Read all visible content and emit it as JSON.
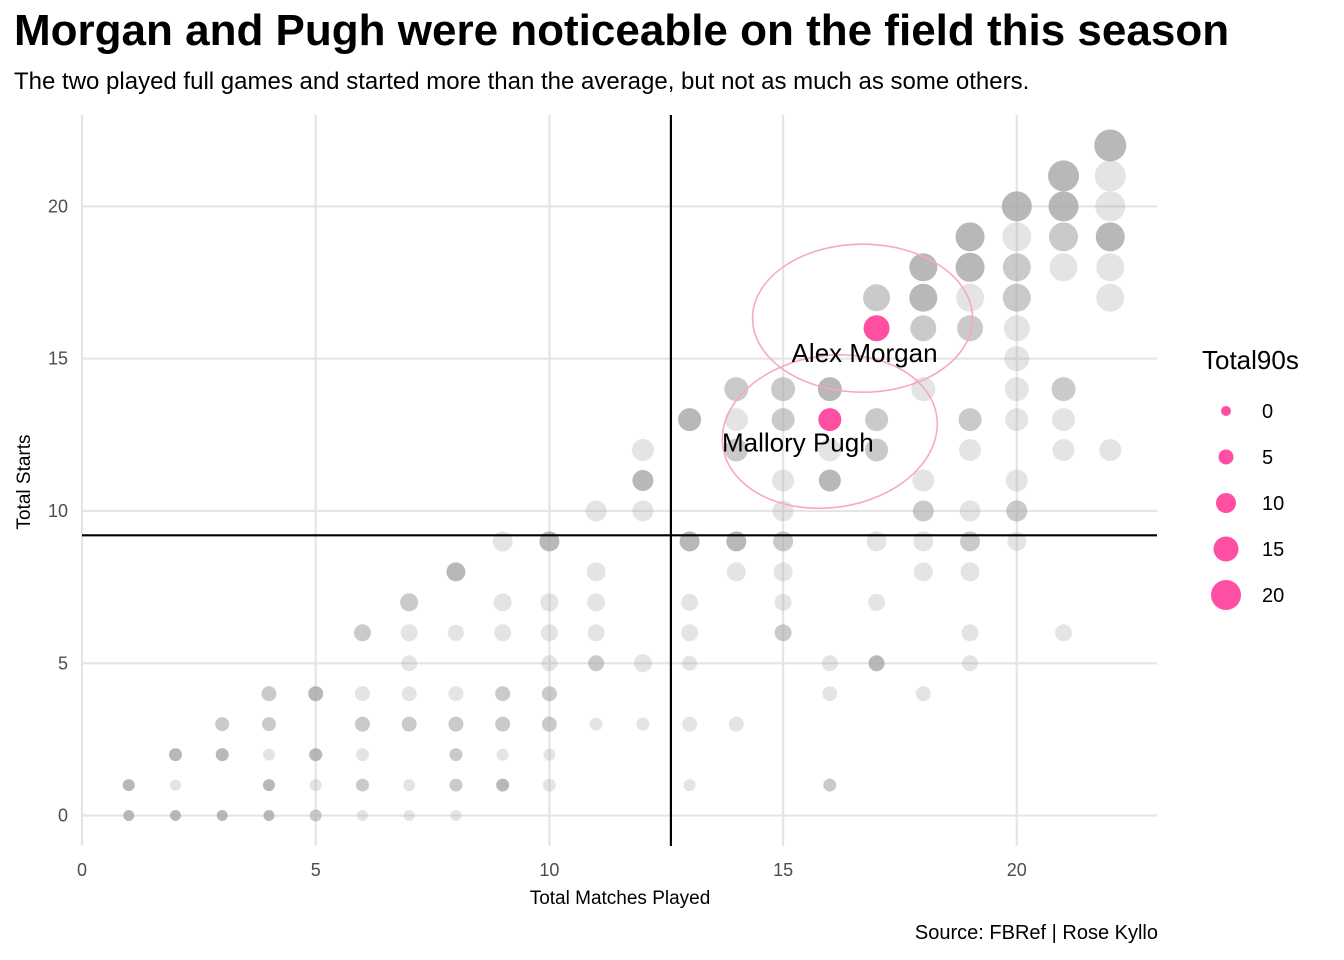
{
  "title": "Morgan and Pugh were noticeable on the field this season",
  "subtitle": "The two played full games and started more than the average, but not as much as some others.",
  "caption": "Source: FBRef | Rose Kyllo",
  "colors": {
    "highlight": "#ff4fa3",
    "points": "#a6a6a6",
    "ellipse": "#f7a8c4",
    "grid": "#e5e5e5",
    "mean_line": "#000000"
  },
  "chart_data": {
    "type": "scatter",
    "xlabel": "Total Matches Played",
    "ylabel": "Total Starts",
    "xlim": [
      0,
      23
    ],
    "ylim": [
      -1,
      23
    ],
    "x_ticks": [
      0,
      5,
      10,
      15,
      20
    ],
    "y_ticks": [
      0,
      5,
      10,
      15,
      20
    ],
    "grid": true,
    "mean_lines": {
      "x": 12.6,
      "y": 9.2
    },
    "legend": {
      "title": "Total90s",
      "placement": "right",
      "entries": [
        0,
        5,
        10,
        15,
        20
      ]
    },
    "points": [
      {
        "x": 1,
        "y": 0,
        "s": 1,
        "a": 0.8
      },
      {
        "x": 1,
        "y": 1,
        "s": 2,
        "a": 0.8
      },
      {
        "x": 2,
        "y": 0,
        "s": 1,
        "a": 0.8
      },
      {
        "x": 2,
        "y": 1,
        "s": 1,
        "a": 0.3
      },
      {
        "x": 2,
        "y": 2,
        "s": 3,
        "a": 0.8
      },
      {
        "x": 3,
        "y": 0,
        "s": 1,
        "a": 0.8
      },
      {
        "x": 3,
        "y": 2,
        "s": 3,
        "a": 0.8
      },
      {
        "x": 3,
        "y": 3,
        "s": 4,
        "a": 0.6
      },
      {
        "x": 4,
        "y": 0,
        "s": 1,
        "a": 0.8
      },
      {
        "x": 4,
        "y": 1,
        "s": 2,
        "a": 0.8
      },
      {
        "x": 4,
        "y": 2,
        "s": 2,
        "a": 0.3
      },
      {
        "x": 4,
        "y": 3,
        "s": 4,
        "a": 0.6
      },
      {
        "x": 4,
        "y": 4,
        "s": 5,
        "a": 0.6
      },
      {
        "x": 5,
        "y": 0,
        "s": 2,
        "a": 0.6
      },
      {
        "x": 5,
        "y": 1,
        "s": 2,
        "a": 0.3
      },
      {
        "x": 5,
        "y": 2,
        "s": 3,
        "a": 0.8
      },
      {
        "x": 5,
        "y": 4,
        "s": 5,
        "a": 0.8
      },
      {
        "x": 6,
        "y": 0,
        "s": 1,
        "a": 0.3
      },
      {
        "x": 6,
        "y": 1,
        "s": 3,
        "a": 0.6
      },
      {
        "x": 6,
        "y": 2,
        "s": 3,
        "a": 0.3
      },
      {
        "x": 6,
        "y": 3,
        "s": 5,
        "a": 0.6
      },
      {
        "x": 6,
        "y": 4,
        "s": 5,
        "a": 0.3
      },
      {
        "x": 6,
        "y": 6,
        "s": 7,
        "a": 0.6
      },
      {
        "x": 7,
        "y": 0,
        "s": 1,
        "a": 0.3
      },
      {
        "x": 7,
        "y": 1,
        "s": 2,
        "a": 0.3
      },
      {
        "x": 7,
        "y": 3,
        "s": 5,
        "a": 0.6
      },
      {
        "x": 7,
        "y": 4,
        "s": 5,
        "a": 0.3
      },
      {
        "x": 7,
        "y": 5,
        "s": 6,
        "a": 0.3
      },
      {
        "x": 7,
        "y": 6,
        "s": 7,
        "a": 0.3
      },
      {
        "x": 7,
        "y": 7,
        "s": 8,
        "a": 0.6
      },
      {
        "x": 8,
        "y": 0,
        "s": 1,
        "a": 0.3
      },
      {
        "x": 8,
        "y": 1,
        "s": 3,
        "a": 0.6
      },
      {
        "x": 8,
        "y": 2,
        "s": 3,
        "a": 0.6
      },
      {
        "x": 8,
        "y": 3,
        "s": 5,
        "a": 0.6
      },
      {
        "x": 8,
        "y": 4,
        "s": 5,
        "a": 0.3
      },
      {
        "x": 8,
        "y": 6,
        "s": 6,
        "a": 0.3
      },
      {
        "x": 8,
        "y": 8,
        "s": 9,
        "a": 0.8
      },
      {
        "x": 9,
        "y": 1,
        "s": 3,
        "a": 0.8
      },
      {
        "x": 9,
        "y": 2,
        "s": 2,
        "a": 0.3
      },
      {
        "x": 9,
        "y": 3,
        "s": 5,
        "a": 0.6
      },
      {
        "x": 9,
        "y": 4,
        "s": 5,
        "a": 0.6
      },
      {
        "x": 9,
        "y": 6,
        "s": 7,
        "a": 0.3
      },
      {
        "x": 9,
        "y": 7,
        "s": 8,
        "a": 0.3
      },
      {
        "x": 9,
        "y": 9,
        "s": 10,
        "a": 0.3
      },
      {
        "x": 10,
        "y": 1,
        "s": 3,
        "a": 0.3
      },
      {
        "x": 10,
        "y": 2,
        "s": 2,
        "a": 0.3
      },
      {
        "x": 10,
        "y": 3,
        "s": 5,
        "a": 0.6
      },
      {
        "x": 10,
        "y": 4,
        "s": 5,
        "a": 0.6
      },
      {
        "x": 10,
        "y": 5,
        "s": 6,
        "a": 0.3
      },
      {
        "x": 10,
        "y": 6,
        "s": 7,
        "a": 0.3
      },
      {
        "x": 10,
        "y": 7,
        "s": 8,
        "a": 0.3
      },
      {
        "x": 10,
        "y": 9,
        "s": 10,
        "a": 0.8
      },
      {
        "x": 11,
        "y": 3,
        "s": 3,
        "a": 0.3
      },
      {
        "x": 11,
        "y": 5,
        "s": 6,
        "a": 0.6
      },
      {
        "x": 11,
        "y": 6,
        "s": 7,
        "a": 0.3
      },
      {
        "x": 11,
        "y": 7,
        "s": 8,
        "a": 0.3
      },
      {
        "x": 11,
        "y": 8,
        "s": 9,
        "a": 0.3
      },
      {
        "x": 11,
        "y": 10,
        "s": 11,
        "a": 0.3
      },
      {
        "x": 12,
        "y": 3,
        "s": 3,
        "a": 0.3
      },
      {
        "x": 12,
        "y": 5,
        "s": 8,
        "a": 0.3
      },
      {
        "x": 12,
        "y": 10,
        "s": 11,
        "a": 0.3
      },
      {
        "x": 12,
        "y": 11,
        "s": 11,
        "a": 0.8
      },
      {
        "x": 12,
        "y": 12,
        "s": 12,
        "a": 0.3
      },
      {
        "x": 13,
        "y": 1,
        "s": 2,
        "a": 0.3
      },
      {
        "x": 13,
        "y": 3,
        "s": 5,
        "a": 0.3
      },
      {
        "x": 13,
        "y": 5,
        "s": 5,
        "a": 0.3
      },
      {
        "x": 13,
        "y": 6,
        "s": 7,
        "a": 0.3
      },
      {
        "x": 13,
        "y": 7,
        "s": 7,
        "a": 0.3
      },
      {
        "x": 13,
        "y": 9,
        "s": 10,
        "a": 0.8
      },
      {
        "x": 13,
        "y": 13,
        "s": 13,
        "a": 0.8
      },
      {
        "x": 14,
        "y": 3,
        "s": 5,
        "a": 0.3
      },
      {
        "x": 14,
        "y": 8,
        "s": 9,
        "a": 0.3
      },
      {
        "x": 14,
        "y": 9,
        "s": 10,
        "a": 0.8
      },
      {
        "x": 14,
        "y": 12,
        "s": 13,
        "a": 0.6
      },
      {
        "x": 14,
        "y": 13,
        "s": 13,
        "a": 0.3
      },
      {
        "x": 14,
        "y": 14,
        "s": 14,
        "a": 0.6
      },
      {
        "x": 15,
        "y": 6,
        "s": 7,
        "a": 0.6
      },
      {
        "x": 15,
        "y": 7,
        "s": 7,
        "a": 0.3
      },
      {
        "x": 15,
        "y": 8,
        "s": 9,
        "a": 0.3
      },
      {
        "x": 15,
        "y": 9,
        "s": 10,
        "a": 0.6
      },
      {
        "x": 15,
        "y": 10,
        "s": 11,
        "a": 0.3
      },
      {
        "x": 15,
        "y": 11,
        "s": 12,
        "a": 0.3
      },
      {
        "x": 15,
        "y": 13,
        "s": 13,
        "a": 0.6
      },
      {
        "x": 15,
        "y": 14,
        "s": 14,
        "a": 0.6
      },
      {
        "x": 16,
        "y": 1,
        "s": 3,
        "a": 0.6
      },
      {
        "x": 16,
        "y": 4,
        "s": 5,
        "a": 0.3
      },
      {
        "x": 16,
        "y": 5,
        "s": 6,
        "a": 0.3
      },
      {
        "x": 16,
        "y": 11,
        "s": 12,
        "a": 0.8
      },
      {
        "x": 16,
        "y": 12,
        "s": 13,
        "a": 0.3
      },
      {
        "x": 16,
        "y": 14,
        "s": 14,
        "a": 0.8
      },
      {
        "x": 17,
        "y": 5,
        "s": 6,
        "a": 0.8
      },
      {
        "x": 17,
        "y": 7,
        "s": 7,
        "a": 0.3
      },
      {
        "x": 17,
        "y": 9,
        "s": 10,
        "a": 0.3
      },
      {
        "x": 17,
        "y": 12,
        "s": 13,
        "a": 0.6
      },
      {
        "x": 17,
        "y": 13,
        "s": 13,
        "a": 0.6
      },
      {
        "x": 17,
        "y": 17,
        "s": 17,
        "a": 0.6
      },
      {
        "x": 18,
        "y": 4,
        "s": 5,
        "a": 0.3
      },
      {
        "x": 18,
        "y": 8,
        "s": 9,
        "a": 0.3
      },
      {
        "x": 18,
        "y": 9,
        "s": 10,
        "a": 0.3
      },
      {
        "x": 18,
        "y": 10,
        "s": 11,
        "a": 0.6
      },
      {
        "x": 18,
        "y": 11,
        "s": 12,
        "a": 0.3
      },
      {
        "x": 18,
        "y": 14,
        "s": 14,
        "a": 0.3
      },
      {
        "x": 18,
        "y": 16,
        "s": 16,
        "a": 0.6
      },
      {
        "x": 18,
        "y": 17,
        "s": 18,
        "a": 0.8
      },
      {
        "x": 18,
        "y": 18,
        "s": 18,
        "a": 0.8
      },
      {
        "x": 19,
        "y": 5,
        "s": 6,
        "a": 0.3
      },
      {
        "x": 19,
        "y": 6,
        "s": 7,
        "a": 0.3
      },
      {
        "x": 19,
        "y": 8,
        "s": 9,
        "a": 0.3
      },
      {
        "x": 19,
        "y": 9,
        "s": 10,
        "a": 0.6
      },
      {
        "x": 19,
        "y": 10,
        "s": 11,
        "a": 0.3
      },
      {
        "x": 19,
        "y": 12,
        "s": 12,
        "a": 0.3
      },
      {
        "x": 19,
        "y": 13,
        "s": 13,
        "a": 0.6
      },
      {
        "x": 19,
        "y": 16,
        "s": 16,
        "a": 0.6
      },
      {
        "x": 19,
        "y": 17,
        "s": 18,
        "a": 0.3
      },
      {
        "x": 19,
        "y": 18,
        "s": 19,
        "a": 0.8
      },
      {
        "x": 19,
        "y": 19,
        "s": 19,
        "a": 0.8
      },
      {
        "x": 20,
        "y": 9,
        "s": 9,
        "a": 0.3
      },
      {
        "x": 20,
        "y": 10,
        "s": 11,
        "a": 0.6
      },
      {
        "x": 20,
        "y": 11,
        "s": 12,
        "a": 0.3
      },
      {
        "x": 20,
        "y": 13,
        "s": 13,
        "a": 0.3
      },
      {
        "x": 20,
        "y": 14,
        "s": 14,
        "a": 0.3
      },
      {
        "x": 20,
        "y": 15,
        "s": 15,
        "a": 0.3
      },
      {
        "x": 20,
        "y": 16,
        "s": 16,
        "a": 0.3
      },
      {
        "x": 20,
        "y": 17,
        "s": 18,
        "a": 0.6
      },
      {
        "x": 20,
        "y": 18,
        "s": 18,
        "a": 0.6
      },
      {
        "x": 20,
        "y": 19,
        "s": 19,
        "a": 0.3
      },
      {
        "x": 20,
        "y": 20,
        "s": 20,
        "a": 0.8
      },
      {
        "x": 21,
        "y": 6,
        "s": 7,
        "a": 0.3
      },
      {
        "x": 21,
        "y": 12,
        "s": 12,
        "a": 0.3
      },
      {
        "x": 21,
        "y": 13,
        "s": 13,
        "a": 0.3
      },
      {
        "x": 21,
        "y": 14,
        "s": 14,
        "a": 0.6
      },
      {
        "x": 21,
        "y": 18,
        "s": 18,
        "a": 0.3
      },
      {
        "x": 21,
        "y": 19,
        "s": 19,
        "a": 0.6
      },
      {
        "x": 21,
        "y": 20,
        "s": 20,
        "a": 0.8
      },
      {
        "x": 21,
        "y": 21,
        "s": 21,
        "a": 0.8
      },
      {
        "x": 22,
        "y": 12,
        "s": 12,
        "a": 0.3
      },
      {
        "x": 22,
        "y": 17,
        "s": 18,
        "a": 0.3
      },
      {
        "x": 22,
        "y": 18,
        "s": 18,
        "a": 0.3
      },
      {
        "x": 22,
        "y": 19,
        "s": 19,
        "a": 0.8
      },
      {
        "x": 22,
        "y": 20,
        "s": 20,
        "a": 0.3
      },
      {
        "x": 22,
        "y": 21,
        "s": 21,
        "a": 0.3
      },
      {
        "x": 22,
        "y": 22,
        "s": 22,
        "a": 0.8
      }
    ],
    "highlights": [
      {
        "name": "Alex Morgan",
        "x": 17,
        "y": 16,
        "s": 16
      },
      {
        "name": "Mallory Pugh",
        "x": 16,
        "y": 13,
        "s": 13
      }
    ]
  }
}
